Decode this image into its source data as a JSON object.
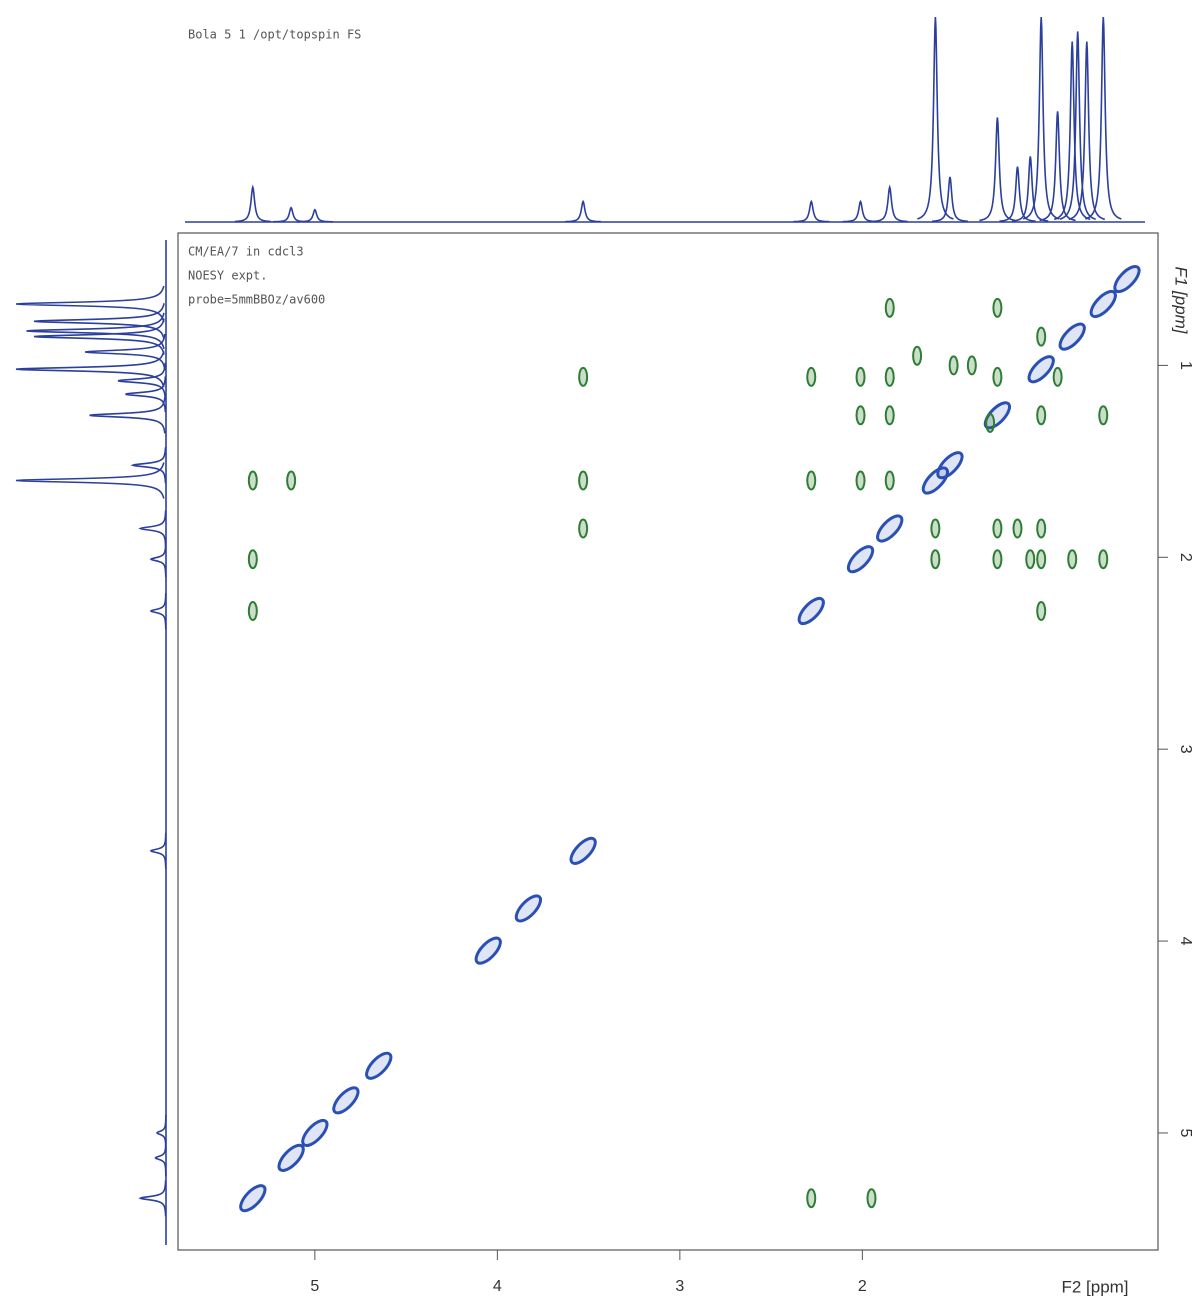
{
  "chart_data": {
    "type": "scatter",
    "header": "Bola  5  1  /opt/topspin  FS",
    "notes": [
      "CM/EA/7  in cdcl3",
      "NOESY expt.",
      "probe=5mmBBOz/av600"
    ],
    "x_label": "F2 [ppm]",
    "y_label": "F1 [ppm]",
    "xlim": [
      5.75,
      0.38
    ],
    "ylim": [
      0.31,
      5.61
    ],
    "xticks": [
      5,
      4,
      3,
      2
    ],
    "yticks": [
      1,
      2,
      3,
      4,
      5
    ],
    "spectrum": {
      "color": "#2b3f9c",
      "x": [
        5.34,
        5.13,
        5.0,
        3.53,
        2.28,
        2.01,
        1.85,
        1.6,
        1.52,
        1.26,
        1.15,
        1.08,
        1.02,
        0.93,
        0.85,
        0.82,
        0.77,
        0.68
      ],
      "values": [
        17,
        7,
        6,
        10,
        10,
        10,
        17,
        100,
        22,
        51,
        27,
        32,
        100,
        54,
        88,
        93,
        88,
        100
      ]
    },
    "diagonal_peaks": {
      "color": "#2a4fb5",
      "x": [
        5.34,
        5.13,
        5.0,
        4.83,
        4.65,
        4.05,
        3.83,
        3.53,
        2.28,
        2.01,
        1.85,
        1.6,
        1.52,
        1.26,
        1.02,
        0.85,
        0.68,
        0.55
      ],
      "y": [
        5.34,
        5.13,
        5.0,
        4.83,
        4.65,
        4.05,
        3.83,
        3.53,
        2.28,
        2.01,
        1.85,
        1.6,
        1.52,
        1.26,
        1.02,
        0.85,
        0.68,
        0.55
      ]
    },
    "cross_peaks": {
      "color": "#2e7d32",
      "x": [
        5.34,
        5.34,
        5.34,
        5.13,
        3.53,
        3.53,
        3.53,
        2.28,
        1.95,
        2.28,
        2.28,
        2.01,
        2.01,
        2.01,
        1.85,
        1.85,
        1.85,
        1.85,
        1.7,
        1.6,
        1.6,
        1.26,
        1.26,
        1.26,
        1.26,
        1.15,
        1.08,
        1.02,
        1.02,
        1.02,
        1.02,
        1.02,
        0.93,
        0.85,
        0.68,
        0.68,
        1.5,
        1.4,
        1.3
      ],
      "y": [
        1.6,
        2.01,
        2.28,
        1.6,
        1.06,
        1.6,
        1.85,
        5.34,
        5.34,
        1.06,
        1.6,
        1.06,
        1.26,
        1.6,
        0.7,
        1.06,
        1.26,
        1.6,
        0.95,
        1.85,
        2.01,
        0.7,
        1.06,
        1.85,
        2.01,
        1.85,
        2.01,
        0.85,
        1.26,
        1.85,
        2.01,
        2.28,
        1.06,
        2.01,
        1.26,
        2.01,
        1.0,
        1.0,
        1.3
      ]
    }
  }
}
